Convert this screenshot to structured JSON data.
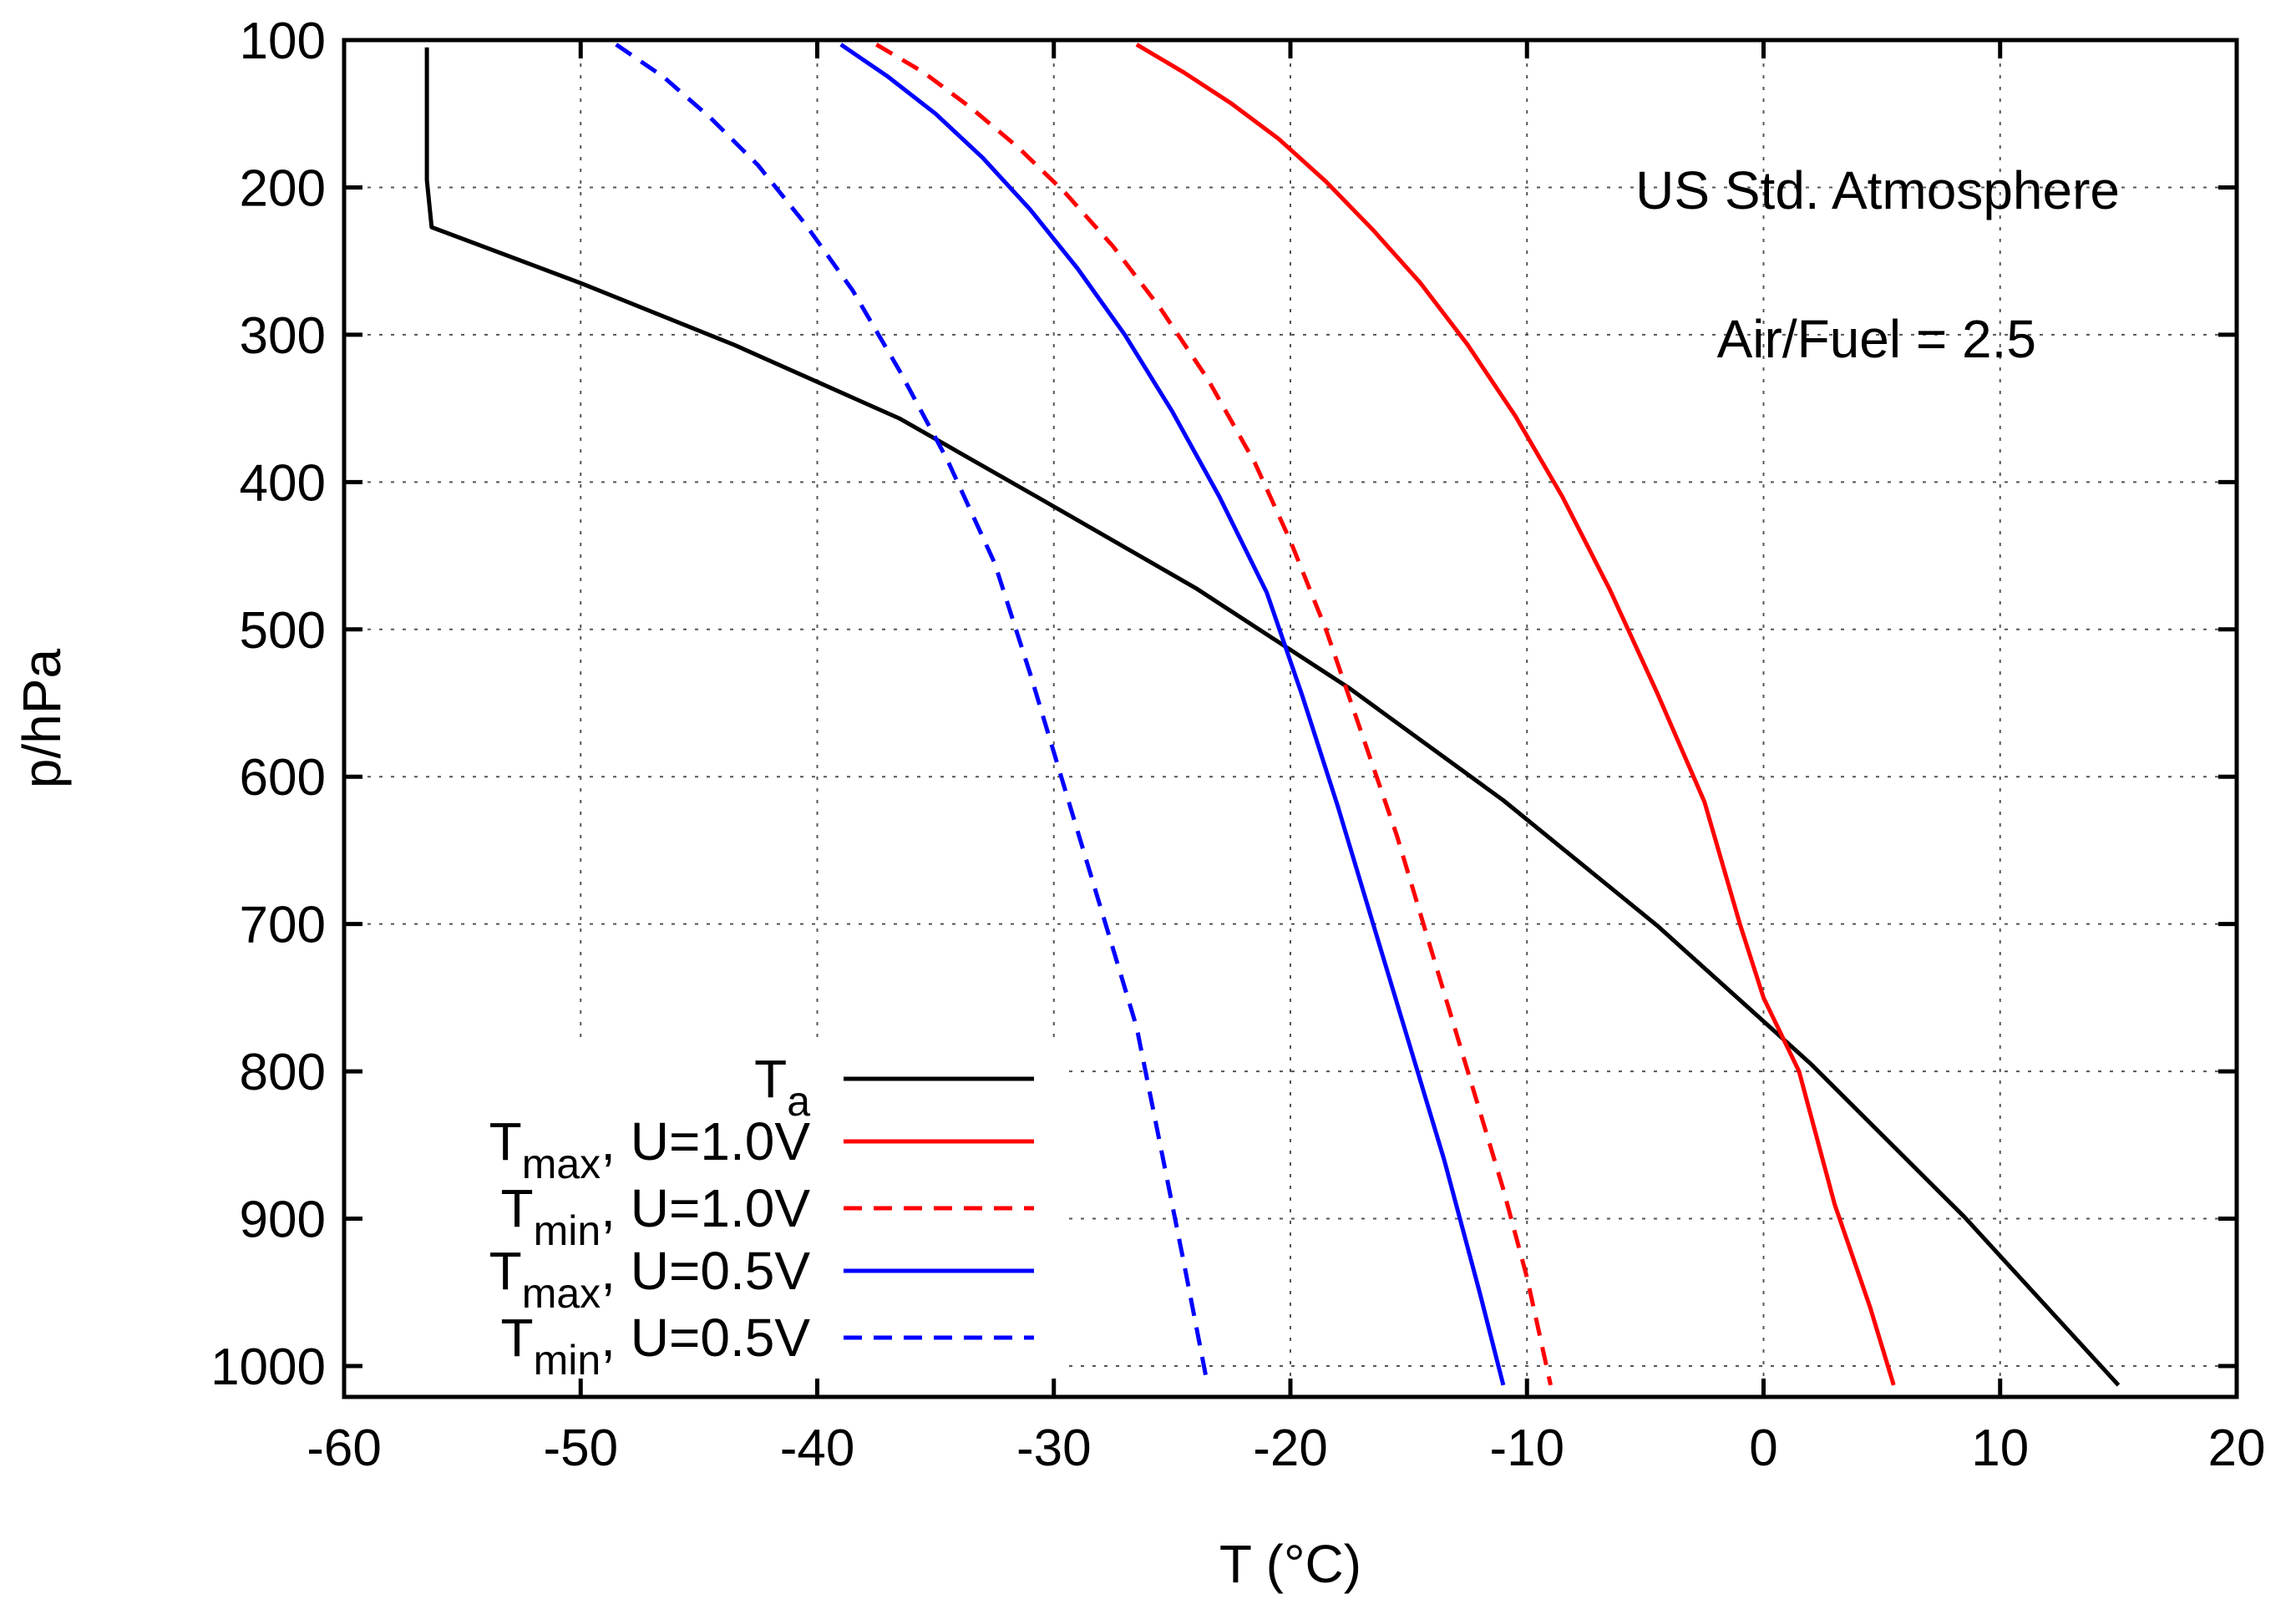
{
  "chart_data": {
    "type": "line",
    "title": "",
    "xlabel": "T (°C)",
    "ylabel": "p/hPa",
    "xlim": [
      -60,
      20
    ],
    "ylim": [
      1020,
      100
    ],
    "y_inverted": true,
    "grid": true,
    "x_ticks": [
      -60,
      -50,
      -40,
      -30,
      -20,
      -10,
      0,
      10,
      20
    ],
    "x_tick_labels": [
      "-60",
      "-50",
      "-40",
      "-30",
      "-20",
      "-10",
      "0",
      "10",
      "20"
    ],
    "y_ticks": [
      100,
      200,
      300,
      400,
      500,
      600,
      700,
      800,
      900,
      1000
    ],
    "y_tick_labels": [
      "100",
      "200",
      "300",
      "400",
      "500",
      "600",
      "700",
      "800",
      "900",
      "1000"
    ],
    "annotations": [
      "US Std. Atmosphere",
      "Air/Fuel = 2.5"
    ],
    "legend_position": "bottom-left",
    "series": [
      {
        "name": "Ta",
        "legend_main": "T",
        "legend_sub": "a",
        "legend_rest": "",
        "color": "#000000",
        "dash": "solid",
        "x": [
          -56.5,
          -56.5,
          -56.3,
          -50,
          -43.5,
          -36.5,
          -30.5,
          -24,
          -17.5,
          -11,
          -4.5,
          2.0,
          8.5,
          15.0
        ],
        "y": [
          105,
          195,
          227,
          265,
          307,
          357,
          412,
          472,
          540,
          616,
          701,
          795,
          899,
          1013
        ]
      },
      {
        "name": "Tmax, U=1.0V",
        "legend_main": "T",
        "legend_sub": "max",
        "legend_rest": ", U=1.0V",
        "color": "#ff0000",
        "dash": "solid",
        "x": [
          -26.5,
          -24.5,
          -22.5,
          -20.5,
          -18.5,
          -16.5,
          -14.5,
          -12.5,
          -10.5,
          -8.5,
          -6.5,
          -4.5,
          -2.5,
          -1,
          0,
          1.5,
          3,
          4.5,
          5.5
        ],
        "y": [
          103,
          122,
          143,
          167,
          196,
          229,
          265,
          307,
          355,
          410,
          473,
          543,
          617,
          700,
          750,
          800,
          890,
          960,
          1013
        ]
      },
      {
        "name": "Tmin, U=1.0V",
        "legend_main": "T",
        "legend_sub": "min",
        "legend_rest": ", U=1.0V",
        "color": "#ff0000",
        "dash": "dashed",
        "x": [
          -37.5,
          -35.5,
          -33.5,
          -31.5,
          -29.5,
          -27.5,
          -25.5,
          -23.5,
          -21.5,
          -20,
          -18.5,
          -17,
          -15.5,
          -14,
          -12.5,
          -11,
          -10,
          -9
        ],
        "y": [
          103,
          122,
          146,
          173,
          204,
          240,
          282,
          330,
          387,
          440,
          500,
          570,
          640,
          720,
          800,
          880,
          940,
          1013
        ]
      },
      {
        "name": "Tmax, U=0.5V",
        "legend_main": "T",
        "legend_sub": "max",
        "legend_rest": ", U=0.5V",
        "color": "#0000ff",
        "dash": "solid",
        "x": [
          -39,
          -37,
          -35,
          -33,
          -31,
          -29,
          -27,
          -25,
          -23,
          -21,
          -19.5,
          -18,
          -16.5,
          -15,
          -13.5,
          -12,
          -11
        ],
        "y": [
          103,
          125,
          150,
          180,
          215,
          255,
          300,
          352,
          410,
          475,
          545,
          620,
          700,
          780,
          860,
          950,
          1013
        ]
      },
      {
        "name": "Tmin, U=0.5V",
        "legend_main": "T",
        "legend_sub": "min",
        "legend_rest": ", U=0.5V",
        "color": "#0000ff",
        "dash": "dashed",
        "x": [
          -48.5,
          -46.5,
          -44.5,
          -42.5,
          -40.5,
          -38.5,
          -36.5,
          -34.5,
          -32.5,
          -31,
          -29.5,
          -28,
          -26.5,
          -25.5,
          -24.5,
          -23.5
        ],
        "y": [
          103,
          125,
          153,
          185,
          225,
          270,
          325,
          385,
          455,
          530,
          610,
          690,
          770,
          850,
          930,
          1013
        ]
      }
    ]
  }
}
